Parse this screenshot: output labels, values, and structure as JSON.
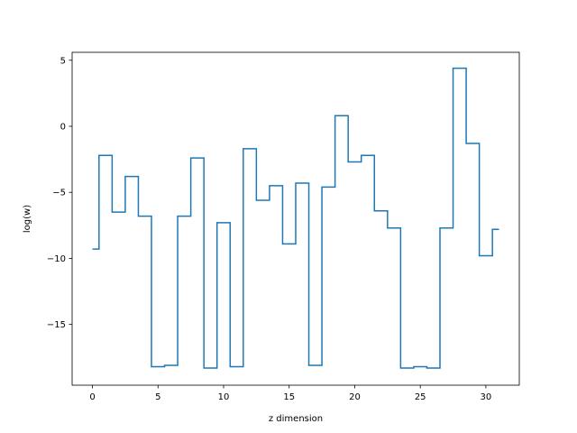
{
  "chart_data": {
    "type": "line",
    "drawstyle": "steps-mid",
    "title": "",
    "xlabel": "z dimension",
    "ylabel": "log(w)",
    "xlim": [
      -1.55,
      32.55
    ],
    "ylim": [
      -19.6,
      5.6
    ],
    "xticks": [
      0,
      5,
      10,
      15,
      20,
      25,
      30
    ],
    "yticks": [
      5,
      0,
      -5,
      -10,
      -15
    ],
    "grid": false,
    "legend": false,
    "line_color": "#1f77b4",
    "x": [
      0,
      1,
      2,
      3,
      4,
      5,
      6,
      7,
      8,
      9,
      10,
      11,
      12,
      13,
      14,
      15,
      16,
      17,
      18,
      19,
      20,
      21,
      22,
      23,
      24,
      25,
      26,
      27,
      28,
      29,
      30,
      31
    ],
    "y": [
      -9.3,
      -2.2,
      -6.5,
      -3.8,
      -6.8,
      -18.2,
      -18.1,
      -6.8,
      -2.4,
      -18.3,
      -7.3,
      -18.2,
      -1.7,
      -5.6,
      -4.5,
      -8.9,
      -4.3,
      -18.1,
      -4.6,
      0.8,
      -2.7,
      -2.2,
      -6.4,
      -7.7,
      -18.3,
      -18.2,
      -18.3,
      -7.7,
      4.4,
      -1.3,
      -9.8,
      -7.8
    ]
  }
}
